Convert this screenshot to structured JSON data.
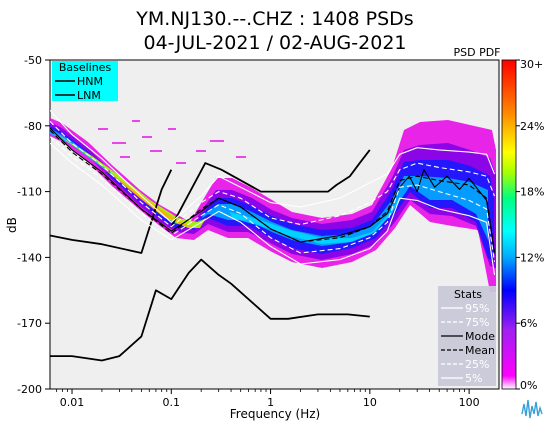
{
  "title": {
    "line1": "YM.NJ130.--.CHZ : 1408 PSDs",
    "line2": "04-JUL-2021 / 02-AUG-2021"
  },
  "colorbar_label": "PSD PDF",
  "colors": {
    "plot_background": "#efefef",
    "baselines_box": "#00ffff",
    "stats_box": "#c8c8d8",
    "colorscale": [
      "#ffffff",
      "#ff00ff",
      "#a020f0",
      "#0000ff",
      "#00aaff",
      "#00ffff",
      "#00ff80",
      "#aaff00",
      "#ffff00",
      "#ff8800",
      "#ff0000"
    ]
  },
  "legend_baselines": {
    "title": "Baselines",
    "items": [
      "HNM",
      "LNM"
    ]
  },
  "legend_stats": {
    "title": "Stats",
    "items": [
      "95%",
      "75%",
      "Mode",
      "Mean",
      "25%",
      "5%"
    ]
  },
  "chart_data": {
    "type": "line",
    "xlabel": "Frequency (Hz)",
    "ylabel": "dB",
    "xscale": "log",
    "xlim": [
      0.006,
      200
    ],
    "ylim": [
      -200,
      -50
    ],
    "xticks": [
      {
        "value": 0.01,
        "label": "0.01"
      },
      {
        "value": 0.1,
        "label": "0.1"
      },
      {
        "value": 1,
        "label": "1"
      },
      {
        "value": 10,
        "label": "10"
      },
      {
        "value": 100,
        "label": "100"
      }
    ],
    "yticks": [
      -50,
      -80,
      -110,
      -140,
      -170,
      -200
    ],
    "colorbar": {
      "label": "PSD PDF",
      "range": [
        0,
        30
      ],
      "ticks": [
        "0%",
        "6%",
        "12%",
        "18%",
        "24%",
        "30+"
      ]
    },
    "series": [
      {
        "name": "HNM",
        "style": "baseline",
        "x": [
          0.1,
          0.22,
          0.32,
          0.8,
          3.8,
          4.6,
          6.3,
          7.9,
          10
        ],
        "y": [
          -126,
          -97,
          -100,
          -110,
          -110,
          -107,
          -103,
          -97,
          -91
        ]
      },
      {
        "name": "LNM",
        "style": "baseline",
        "x": [
          0.006,
          0.01,
          0.02,
          0.03,
          0.05,
          0.07,
          0.1,
          0.15,
          0.2,
          0.3,
          0.4,
          1,
          1.5,
          3,
          6,
          10
        ],
        "y": [
          -185,
          -185,
          -187,
          -185,
          -176,
          -155,
          -159,
          -147,
          -141,
          -148,
          -152,
          -168,
          -168,
          -166,
          -166,
          -167
        ]
      },
      {
        "name": "",
        "style": "baseline",
        "x": [
          0.006,
          0.01,
          0.02,
          0.05,
          0.08,
          0.1
        ],
        "y": [
          -130,
          -132,
          -134,
          -138,
          -109,
          -100
        ]
      },
      {
        "name": "95%",
        "style": "stat",
        "x": [
          0.006,
          0.01,
          0.02,
          0.05,
          0.1,
          0.2,
          0.3,
          0.5,
          1,
          2,
          5,
          10,
          15,
          20,
          30,
          50,
          100,
          150,
          180
        ],
        "y": [
          -73,
          -84,
          -95,
          -112,
          -124,
          -112,
          -103,
          -108,
          -115,
          -117,
          -113,
          -106,
          -102,
          -93,
          -90,
          -91,
          -92,
          -93,
          -102
        ]
      },
      {
        "name": "75%",
        "style": "stat",
        "x": [
          0.006,
          0.01,
          0.02,
          0.05,
          0.1,
          0.2,
          0.3,
          0.5,
          1,
          2,
          5,
          10,
          15,
          20,
          30,
          50,
          100,
          150,
          180
        ],
        "y": [
          -78,
          -88,
          -98,
          -115,
          -126,
          -115,
          -110,
          -113,
          -122,
          -125,
          -121,
          -115,
          -110,
          -100,
          -97,
          -99,
          -101,
          -103,
          -112
        ]
      },
      {
        "name": "Mode",
        "style": "stat",
        "x": [
          0.006,
          0.01,
          0.02,
          0.05,
          0.1,
          0.2,
          0.3,
          0.5,
          1,
          2,
          5,
          10,
          15,
          20,
          25,
          30,
          35,
          45,
          60,
          80,
          100,
          150,
          180
        ],
        "y": [
          -81,
          -91,
          -101,
          -118,
          -128,
          -119,
          -113,
          -117,
          -127,
          -133,
          -130,
          -126,
          -120,
          -108,
          -103,
          -110,
          -100,
          -108,
          -103,
          -109,
          -104,
          -114,
          -138
        ]
      },
      {
        "name": "Mean",
        "style": "stat",
        "x": [
          0.006,
          0.01,
          0.02,
          0.05,
          0.1,
          0.2,
          0.3,
          0.5,
          1,
          2,
          5,
          10,
          15,
          20,
          30,
          50,
          100,
          150,
          180
        ],
        "y": [
          -82,
          -92,
          -102,
          -118,
          -129,
          -118,
          -113,
          -117,
          -127,
          -133,
          -131,
          -126,
          -119,
          -105,
          -103,
          -105,
          -107,
          -113,
          -137
        ]
      },
      {
        "name": "25%",
        "style": "stat",
        "x": [
          0.006,
          0.01,
          0.02,
          0.05,
          0.1,
          0.2,
          0.3,
          0.5,
          1,
          2,
          5,
          10,
          15,
          20,
          30,
          50,
          100,
          150,
          180
        ],
        "y": [
          -85,
          -94,
          -104,
          -120,
          -130,
          -121,
          -116,
          -120,
          -131,
          -138,
          -136,
          -131,
          -124,
          -108,
          -107,
          -110,
          -114,
          -118,
          -142
        ]
      },
      {
        "name": "5%",
        "style": "stat",
        "x": [
          0.006,
          0.01,
          0.02,
          0.05,
          0.1,
          0.2,
          0.3,
          0.5,
          1,
          2,
          5,
          10,
          15,
          20,
          30,
          50,
          100,
          150,
          180
        ],
        "y": [
          -88,
          -97,
          -107,
          -123,
          -132,
          -124,
          -119,
          -124,
          -135,
          -143,
          -141,
          -136,
          -128,
          -113,
          -114,
          -118,
          -121,
          -124,
          -148
        ]
      }
    ]
  }
}
